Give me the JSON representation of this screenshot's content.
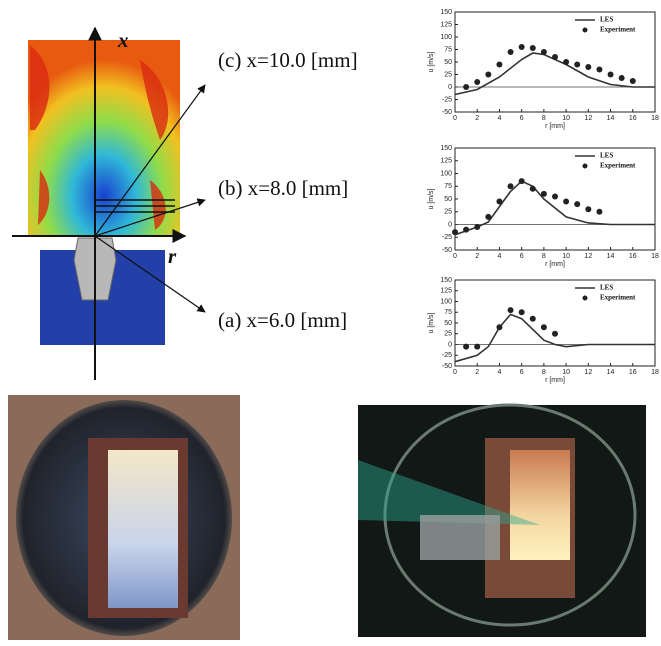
{
  "diagram": {
    "x_axis_label": "x",
    "r_axis_label": "r"
  },
  "chart_data": [
    {
      "type": "line",
      "annotation": "(c) x=10.0 [mm]",
      "xlabel": "r [mm]",
      "ylabel": "u [m/s]",
      "xlim": [
        0,
        18
      ],
      "ylim": [
        -50,
        150
      ],
      "xticks": [
        0,
        2,
        4,
        6,
        8,
        10,
        12,
        14,
        16,
        18
      ],
      "yticks": [
        -50,
        -25,
        0,
        25,
        50,
        75,
        100,
        125,
        150
      ],
      "series": [
        {
          "name": "LES",
          "color": "#333333",
          "style": "line",
          "x": [
            0,
            2,
            4,
            6,
            7,
            8,
            10,
            12,
            14,
            16,
            18
          ],
          "values": [
            -15,
            -5,
            20,
            55,
            68,
            65,
            45,
            20,
            5,
            0,
            0
          ]
        },
        {
          "name": "Experiment",
          "color": "#222222",
          "style": "dots",
          "x": [
            1,
            2,
            3,
            4,
            5,
            6,
            7,
            8,
            9,
            10,
            11,
            12,
            13,
            14,
            15,
            16
          ],
          "values": [
            0,
            10,
            25,
            45,
            70,
            80,
            78,
            70,
            60,
            50,
            45,
            40,
            35,
            25,
            18,
            12
          ]
        }
      ]
    },
    {
      "type": "line",
      "annotation": "(b) x=8.0 [mm]",
      "xlabel": "r [mm]",
      "ylabel": "u [m/s]",
      "xlim": [
        0,
        18
      ],
      "ylim": [
        -50,
        150
      ],
      "xticks": [
        0,
        2,
        4,
        6,
        8,
        10,
        12,
        14,
        16,
        18
      ],
      "yticks": [
        -50,
        -25,
        0,
        25,
        50,
        75,
        100,
        125,
        150
      ],
      "series": [
        {
          "name": "LES",
          "color": "#333333",
          "style": "line",
          "x": [
            0,
            2,
            3,
            4,
            5,
            6,
            7,
            8,
            10,
            12,
            14,
            18
          ],
          "values": [
            -20,
            -5,
            5,
            35,
            65,
            85,
            75,
            50,
            15,
            3,
            0,
            0
          ]
        },
        {
          "name": "Experiment",
          "color": "#222222",
          "style": "dots",
          "x": [
            0,
            1,
            2,
            3,
            4,
            5,
            6,
            7,
            8,
            9,
            10,
            11,
            12,
            13
          ],
          "values": [
            -15,
            -10,
            -5,
            15,
            45,
            75,
            85,
            70,
            60,
            55,
            45,
            40,
            30,
            25
          ]
        }
      ]
    },
    {
      "type": "line",
      "annotation": "(a) x=6.0 [mm]",
      "xlabel": "r [mm]",
      "ylabel": "u [m/s]",
      "xlim": [
        0,
        18
      ],
      "ylim": [
        -50,
        150
      ],
      "xticks": [
        0,
        2,
        4,
        6,
        8,
        10,
        12,
        14,
        16,
        18
      ],
      "yticks": [
        -50,
        -25,
        0,
        25,
        50,
        75,
        100,
        125,
        150
      ],
      "series": [
        {
          "name": "LES",
          "color": "#333333",
          "style": "line",
          "x": [
            0,
            2,
            3,
            4,
            5,
            6,
            7,
            8,
            9,
            10,
            12,
            18
          ],
          "values": [
            -40,
            -25,
            -5,
            40,
            70,
            60,
            35,
            10,
            0,
            -5,
            0,
            0
          ]
        },
        {
          "name": "Experiment",
          "color": "#222222",
          "style": "dots",
          "x": [
            1,
            2,
            4,
            5,
            6,
            7,
            8,
            9
          ],
          "values": [
            -5,
            -5,
            40,
            80,
            75,
            60,
            40,
            25
          ]
        }
      ]
    }
  ]
}
